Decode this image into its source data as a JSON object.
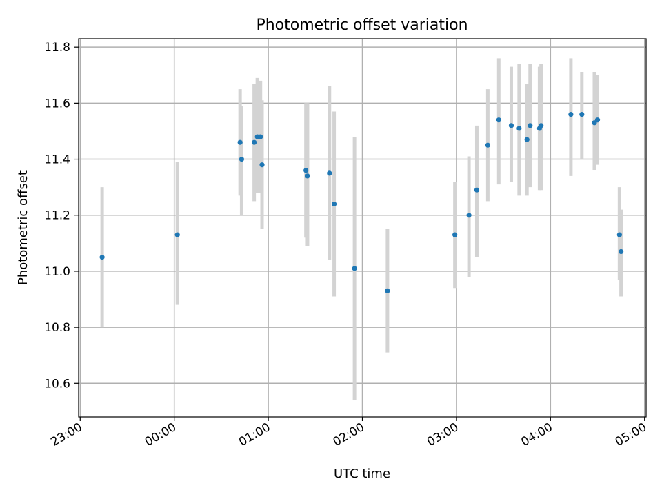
{
  "chart_data": {
    "type": "scatter",
    "title": "Photometric offset variation",
    "xlabel": "UTC time",
    "ylabel": "Photometric offset",
    "x_unit": "UTC time (HH:MM)",
    "xlim": [
      "22:59",
      "05:01"
    ],
    "ylim": [
      10.48,
      11.83
    ],
    "x_ticks": [
      "23:00",
      "00:00",
      "01:00",
      "02:00",
      "03:00",
      "04:00",
      "05:00"
    ],
    "y_ticks": [
      "10.6",
      "10.8",
      "11.0",
      "11.2",
      "11.4",
      "11.6",
      "11.8"
    ],
    "grid": true,
    "colors": {
      "points": "#1f77b4",
      "error_bars": "#d3d3d3",
      "grid": "#b0b0b0"
    },
    "series": [
      {
        "points": [
          {
            "time": "23:14",
            "y": 11.05,
            "ylow": 10.8,
            "yhigh": 11.3
          },
          {
            "time": "00:02",
            "y": 11.13,
            "ylow": 10.88,
            "yhigh": 11.39
          },
          {
            "time": "00:42",
            "y": 11.46,
            "ylow": 11.27,
            "yhigh": 11.65
          },
          {
            "time": "00:43",
            "y": 11.4,
            "ylow": 11.2,
            "yhigh": 11.59
          },
          {
            "time": "00:51",
            "y": 11.46,
            "ylow": 11.25,
            "yhigh": 11.67
          },
          {
            "time": "00:53",
            "y": 11.48,
            "ylow": 11.28,
            "yhigh": 11.69
          },
          {
            "time": "00:55",
            "y": 11.48,
            "ylow": 11.28,
            "yhigh": 11.68
          },
          {
            "time": "00:56",
            "y": 11.38,
            "ylow": 11.15,
            "yhigh": 11.61
          },
          {
            "time": "01:24",
            "y": 11.36,
            "ylow": 11.12,
            "yhigh": 11.6
          },
          {
            "time": "01:25",
            "y": 11.34,
            "ylow": 11.09,
            "yhigh": 11.6
          },
          {
            "time": "01:39",
            "y": 11.35,
            "ylow": 11.04,
            "yhigh": 11.66
          },
          {
            "time": "01:42",
            "y": 11.24,
            "ylow": 10.91,
            "yhigh": 11.57
          },
          {
            "time": "01:55",
            "y": 11.01,
            "ylow": 10.54,
            "yhigh": 11.48
          },
          {
            "time": "02:16",
            "y": 10.93,
            "ylow": 10.71,
            "yhigh": 11.15
          },
          {
            "time": "02:59",
            "y": 11.13,
            "ylow": 10.94,
            "yhigh": 11.32
          },
          {
            "time": "03:08",
            "y": 11.2,
            "ylow": 10.98,
            "yhigh": 11.41
          },
          {
            "time": "03:13",
            "y": 11.29,
            "ylow": 11.05,
            "yhigh": 11.52
          },
          {
            "time": "03:20",
            "y": 11.45,
            "ylow": 11.25,
            "yhigh": 11.65
          },
          {
            "time": "03:27",
            "y": 11.54,
            "ylow": 11.31,
            "yhigh": 11.76
          },
          {
            "time": "03:35",
            "y": 11.52,
            "ylow": 11.32,
            "yhigh": 11.73
          },
          {
            "time": "03:40",
            "y": 11.51,
            "ylow": 11.27,
            "yhigh": 11.74
          },
          {
            "time": "03:45",
            "y": 11.47,
            "ylow": 11.27,
            "yhigh": 11.67
          },
          {
            "time": "03:47",
            "y": 11.52,
            "ylow": 11.3,
            "yhigh": 11.74
          },
          {
            "time": "03:53",
            "y": 11.51,
            "ylow": 11.29,
            "yhigh": 11.73
          },
          {
            "time": "03:54",
            "y": 11.52,
            "ylow": 11.29,
            "yhigh": 11.74
          },
          {
            "time": "04:13",
            "y": 11.56,
            "ylow": 11.34,
            "yhigh": 11.76
          },
          {
            "time": "04:20",
            "y": 11.56,
            "ylow": 11.4,
            "yhigh": 11.71
          },
          {
            "time": "04:28",
            "y": 11.53,
            "ylow": 11.36,
            "yhigh": 11.71
          },
          {
            "time": "04:30",
            "y": 11.54,
            "ylow": 11.38,
            "yhigh": 11.7
          },
          {
            "time": "04:44",
            "y": 11.13,
            "ylow": 10.97,
            "yhigh": 11.3
          },
          {
            "time": "04:45",
            "y": 11.07,
            "ylow": 10.91,
            "yhigh": 11.22
          }
        ]
      }
    ]
  }
}
